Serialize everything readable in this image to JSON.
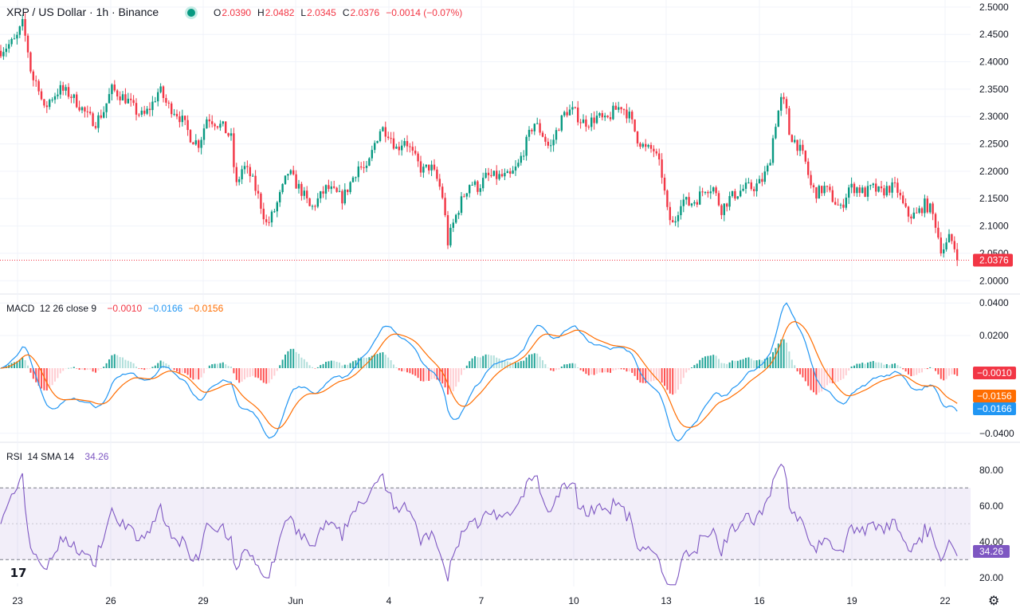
{
  "header": {
    "symbol": "XRP / US Dollar · 1h · Binance",
    "status_color": "#089981",
    "ohlc": [
      {
        "k": "O",
        "v": "2.0390"
      },
      {
        "k": "H",
        "v": "2.0482"
      },
      {
        "k": "L",
        "v": "2.0345"
      },
      {
        "k": "C",
        "v": "2.0376"
      },
      {
        "k": "",
        "v": "−0.0014 (−0.07%)"
      }
    ]
  },
  "price_tag": "2.0376",
  "macd": {
    "label": "MACD",
    "params": "12 26 close 9",
    "values": [
      "−0.0010",
      "−0.0166",
      "−0.0156"
    ],
    "tags": [
      "−0.0010",
      "−0.0156",
      "−0.0166"
    ]
  },
  "rsi": {
    "label": "RSI",
    "params": "14 SMA 14",
    "value": "34.26",
    "tag": "34.26"
  },
  "colors": {
    "up": "#089981",
    "down": "#f23645",
    "macd": "#2196f3",
    "signal": "#ff6d00",
    "rsi": "#7e57c2",
    "band": "#7e57c2"
  },
  "chart_data": [
    {
      "type": "candlestick",
      "title": "XRP / US Dollar · 1h · Binance",
      "ylim": [
        1.98,
        2.51
      ],
      "y_ticks": [
        "2.5000",
        "2.4500",
        "2.4000",
        "2.3500",
        "2.3000",
        "2.2500",
        "2.2000",
        "2.1500",
        "2.1000",
        "2.0500",
        "2.0000"
      ],
      "x_ticks": [
        "23",
        "26",
        "29",
        "Jun",
        "4",
        "7",
        "10",
        "13",
        "16",
        "19",
        "22"
      ],
      "last_price": 2.0376,
      "price_path": [
        [
          0,
          2.42
        ],
        [
          10,
          2.43
        ],
        [
          20,
          2.44
        ],
        [
          28,
          2.47
        ],
        [
          34,
          2.43
        ],
        [
          40,
          2.37
        ],
        [
          48,
          2.36
        ],
        [
          55,
          2.31
        ],
        [
          62,
          2.33
        ],
        [
          75,
          2.35
        ],
        [
          88,
          2.34
        ],
        [
          100,
          2.32
        ],
        [
          110,
          2.3
        ],
        [
          120,
          2.29
        ],
        [
          130,
          2.31
        ],
        [
          140,
          2.35
        ],
        [
          150,
          2.34
        ],
        [
          160,
          2.33
        ],
        [
          170,
          2.31
        ],
        [
          180,
          2.3
        ],
        [
          190,
          2.32
        ],
        [
          200,
          2.35
        ],
        [
          210,
          2.32
        ],
        [
          220,
          2.31
        ],
        [
          230,
          2.29
        ],
        [
          240,
          2.26
        ],
        [
          250,
          2.25
        ],
        [
          260,
          2.3
        ],
        [
          270,
          2.29
        ],
        [
          280,
          2.28
        ],
        [
          290,
          2.26
        ],
        [
          296,
          2.17
        ],
        [
          305,
          2.21
        ],
        [
          315,
          2.19
        ],
        [
          325,
          2.15
        ],
        [
          335,
          2.1
        ],
        [
          345,
          2.13
        ],
        [
          355,
          2.17
        ],
        [
          362,
          2.2
        ],
        [
          370,
          2.18
        ],
        [
          380,
          2.16
        ],
        [
          390,
          2.13
        ],
        [
          400,
          2.15
        ],
        [
          410,
          2.17
        ],
        [
          420,
          2.16
        ],
        [
          430,
          2.15
        ],
        [
          440,
          2.18
        ],
        [
          450,
          2.21
        ],
        [
          460,
          2.2
        ],
        [
          470,
          2.25
        ],
        [
          478,
          2.28
        ],
        [
          488,
          2.27
        ],
        [
          498,
          2.24
        ],
        [
          508,
          2.26
        ],
        [
          518,
          2.23
        ],
        [
          530,
          2.2
        ],
        [
          540,
          2.21
        ],
        [
          550,
          2.18
        ],
        [
          556,
          2.15
        ],
        [
          562,
          2.07
        ],
        [
          570,
          2.11
        ],
        [
          580,
          2.15
        ],
        [
          590,
          2.18
        ],
        [
          600,
          2.17
        ],
        [
          610,
          2.19
        ],
        [
          620,
          2.19
        ],
        [
          630,
          2.19
        ],
        [
          640,
          2.19
        ],
        [
          650,
          2.21
        ],
        [
          660,
          2.25
        ],
        [
          670,
          2.29
        ],
        [
          680,
          2.27
        ],
        [
          690,
          2.24
        ],
        [
          700,
          2.28
        ],
        [
          710,
          2.31
        ],
        [
          720,
          2.31
        ],
        [
          730,
          2.29
        ],
        [
          740,
          2.29
        ],
        [
          750,
          2.3
        ],
        [
          760,
          2.29
        ],
        [
          770,
          2.31
        ],
        [
          780,
          2.32
        ],
        [
          790,
          2.3
        ],
        [
          800,
          2.26
        ],
        [
          810,
          2.24
        ],
        [
          820,
          2.24
        ],
        [
          830,
          2.2
        ],
        [
          838,
          2.12
        ],
        [
          845,
          2.1
        ],
        [
          855,
          2.15
        ],
        [
          865,
          2.14
        ],
        [
          875,
          2.15
        ],
        [
          885,
          2.17
        ],
        [
          895,
          2.17
        ],
        [
          905,
          2.13
        ],
        [
          915,
          2.15
        ],
        [
          925,
          2.16
        ],
        [
          935,
          2.17
        ],
        [
          945,
          2.17
        ],
        [
          955,
          2.18
        ],
        [
          965,
          2.21
        ],
        [
          972,
          2.28
        ],
        [
          980,
          2.33
        ],
        [
          986,
          2.32
        ],
        [
          990,
          2.27
        ],
        [
          1000,
          2.25
        ],
        [
          1010,
          2.22
        ],
        [
          1018,
          2.17
        ],
        [
          1025,
          2.16
        ],
        [
          1035,
          2.17
        ],
        [
          1045,
          2.15
        ],
        [
          1055,
          2.13
        ],
        [
          1065,
          2.17
        ],
        [
          1075,
          2.17
        ],
        [
          1085,
          2.16
        ],
        [
          1095,
          2.17
        ],
        [
          1105,
          2.16
        ],
        [
          1115,
          2.17
        ],
        [
          1125,
          2.17
        ],
        [
          1135,
          2.13
        ],
        [
          1140,
          2.12
        ],
        [
          1150,
          2.12
        ],
        [
          1160,
          2.14
        ],
        [
          1168,
          2.13
        ],
        [
          1175,
          2.1
        ],
        [
          1180,
          2.06
        ],
        [
          1186,
          2.06
        ],
        [
          1192,
          2.08
        ],
        [
          1198,
          2.06
        ],
        [
          1203,
          2.04
        ]
      ]
    },
    {
      "type": "line",
      "title": "MACD 12 26 close 9",
      "ylim": [
        -0.045,
        0.045
      ],
      "y_ticks": [
        "0.0400",
        "0.0200",
        "−0.0400"
      ],
      "series": [
        {
          "name": "MACD",
          "values_note": "derived from price_path"
        },
        {
          "name": "Signal"
        },
        {
          "name": "Histogram"
        }
      ]
    },
    {
      "type": "line",
      "title": "RSI 14 SMA 14",
      "ylim": [
        15,
        95
      ],
      "y_ticks": [
        "80.00",
        "60.00",
        "40.00",
        "20.00"
      ],
      "bands": [
        30,
        70
      ],
      "series": [
        {
          "name": "RSI",
          "values_note": "derived from price_path"
        }
      ]
    }
  ]
}
